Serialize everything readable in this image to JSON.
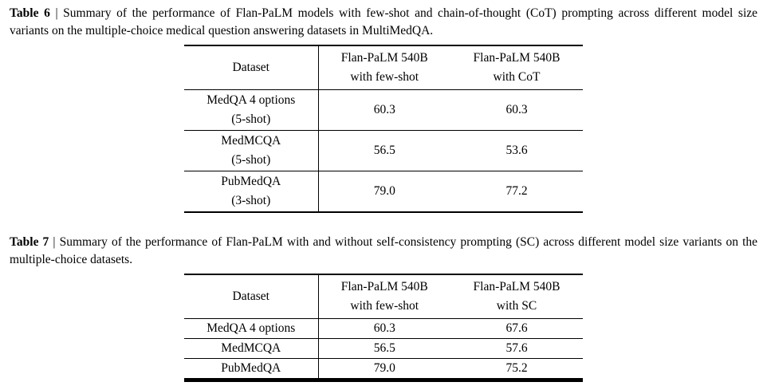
{
  "page": {
    "background": "#ffffff",
    "text_color": "#000000"
  },
  "table6": {
    "caption_label": "Table 6",
    "caption_text": "| Summary of the performance of Flan-PaLM models with few-shot and chain-of-thought (CoT) prompting across different model size variants on the multiple-choice medical question answering datasets in MultiMedQA.",
    "header": {
      "dataset": "Dataset",
      "col1_line1": "Flan-PaLM 540B",
      "col1_line2": "with few-shot",
      "col2_line1": "Flan-PaLM 540B",
      "col2_line2": "with CoT"
    },
    "rows": [
      {
        "name_line1": "MedQA 4 options",
        "name_line2": "(5-shot)",
        "few_shot": "60.3",
        "cot": "60.3"
      },
      {
        "name_line1": "MedMCQA",
        "name_line2": "(5-shot)",
        "few_shot": "56.5",
        "cot": "53.6"
      },
      {
        "name_line1": "PubMedQA",
        "name_line2": "(3-shot)",
        "few_shot": "79.0",
        "cot": "77.2"
      }
    ]
  },
  "table7": {
    "caption_label": "Table 7",
    "caption_text": "| Summary of the performance of Flan-PaLM with and without self-consistency prompting (SC) across different model size variants on the multiple-choice datasets.",
    "header": {
      "dataset": "Dataset",
      "col1_line1": "Flan-PaLM 540B",
      "col1_line2": "with few-shot",
      "col2_line1": "Flan-PaLM 540B",
      "col2_line2": "with SC"
    },
    "rows": [
      {
        "name": "MedQA 4 options",
        "few_shot": "60.3",
        "sc": "67.6"
      },
      {
        "name": "MedMCQA",
        "few_shot": "56.5",
        "sc": "57.6"
      },
      {
        "name": "PubMedQA",
        "few_shot": "79.0",
        "sc": "75.2"
      }
    ]
  },
  "chart_data": [
    {
      "type": "table",
      "title": "Table 6",
      "columns": [
        "Dataset",
        "Flan-PaLM 540B with few-shot",
        "Flan-PaLM 540B with CoT"
      ],
      "rows": [
        [
          "MedQA 4 options (5-shot)",
          60.3,
          60.3
        ],
        [
          "MedMCQA (5-shot)",
          56.5,
          53.6
        ],
        [
          "PubMedQA (3-shot)",
          79.0,
          77.2
        ]
      ]
    },
    {
      "type": "table",
      "title": "Table 7",
      "columns": [
        "Dataset",
        "Flan-PaLM 540B with few-shot",
        "Flan-PaLM 540B with SC"
      ],
      "rows": [
        [
          "MedQA 4 options",
          60.3,
          67.6
        ],
        [
          "MedMCQA",
          56.5,
          57.6
        ],
        [
          "PubMedQA",
          79.0,
          75.2
        ]
      ]
    }
  ]
}
